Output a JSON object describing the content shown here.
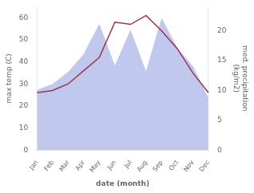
{
  "chart_data": {
    "type": "line",
    "xlabel": "date (month)",
    "ylabel": "max temp (C)",
    "y2label": "med. precipitation\n(kg/m2)",
    "categories": [
      "Jan",
      "Feb",
      "Mar",
      "Apr",
      "May",
      "Jun",
      "Jul",
      "Aug",
      "Sep",
      "Oct",
      "Nov",
      "Dec"
    ],
    "series": [
      {
        "type": "area",
        "axis": "y2",
        "color": "#c0c8ee",
        "values": [
          10,
          11,
          13,
          16,
          21,
          14,
          20,
          13,
          22,
          17,
          14,
          8.5
        ]
      },
      {
        "type": "line",
        "axis": "y",
        "color": "#a03050",
        "values": [
          26,
          27,
          30,
          36,
          42,
          58,
          57,
          61,
          54,
          46,
          35,
          26
        ]
      }
    ],
    "ylim": [
      0,
      65
    ],
    "yticks": [
      0,
      10,
      20,
      30,
      40,
      50,
      60
    ],
    "y2lim": [
      0,
      24
    ],
    "y2ticks": [
      0,
      5,
      10,
      15,
      20
    ],
    "grid": false
  }
}
